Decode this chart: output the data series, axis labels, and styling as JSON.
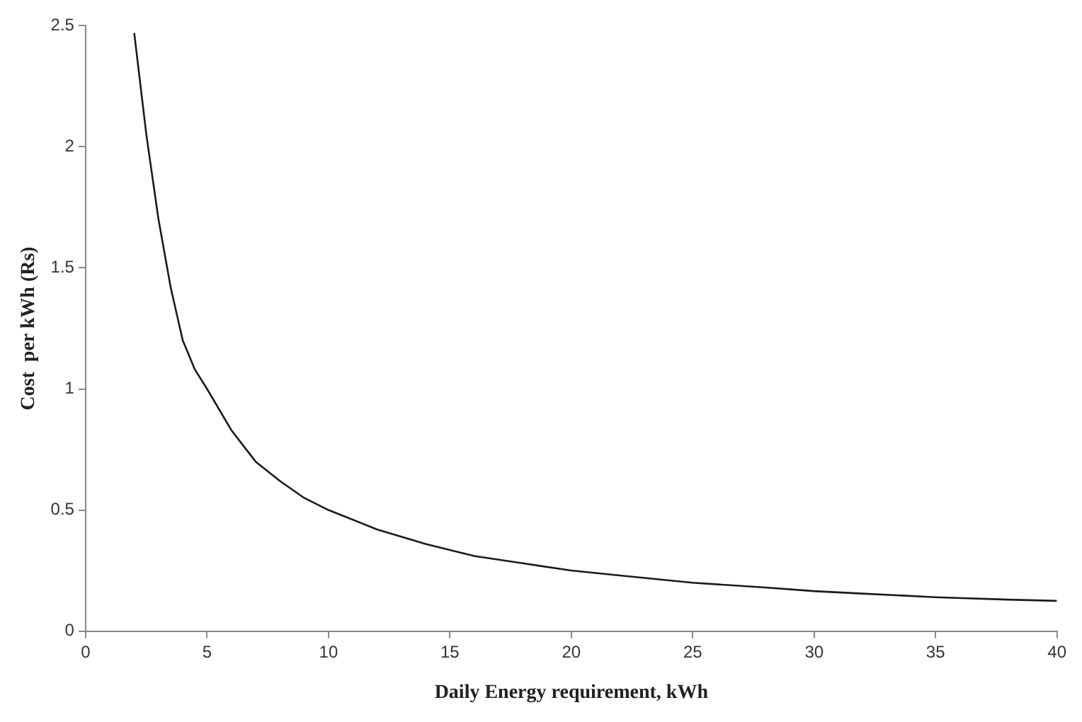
{
  "chart_data": {
    "type": "line",
    "xlabel": "Daily Energy requirement, kWh",
    "ylabel": "Cost  per kWh (Rs)",
    "series": [
      {
        "color": "#1a1a1a",
        "x": [
          2,
          2.5,
          3,
          3.5,
          4,
          4.5,
          5,
          6,
          7,
          8,
          9,
          10,
          12,
          14,
          16,
          18,
          20,
          22,
          25,
          28,
          30,
          32,
          35,
          38,
          40
        ],
        "values": [
          2.47,
          2.05,
          1.7,
          1.42,
          1.2,
          1.08,
          1.0,
          0.83,
          0.7,
          0.62,
          0.55,
          0.5,
          0.42,
          0.36,
          0.31,
          0.28,
          0.25,
          0.23,
          0.2,
          0.18,
          0.165,
          0.155,
          0.14,
          0.13,
          0.125
        ]
      }
    ],
    "xlim": [
      0,
      40
    ],
    "xticks": [
      0,
      5,
      10,
      15,
      20,
      25,
      30,
      35,
      40
    ],
    "ylim": [
      0,
      2.5
    ],
    "yticks": [
      0,
      0.5,
      1,
      1.5,
      2,
      2.5
    ],
    "grid": false,
    "legend": false,
    "marker": "none",
    "line_style": "solid"
  }
}
